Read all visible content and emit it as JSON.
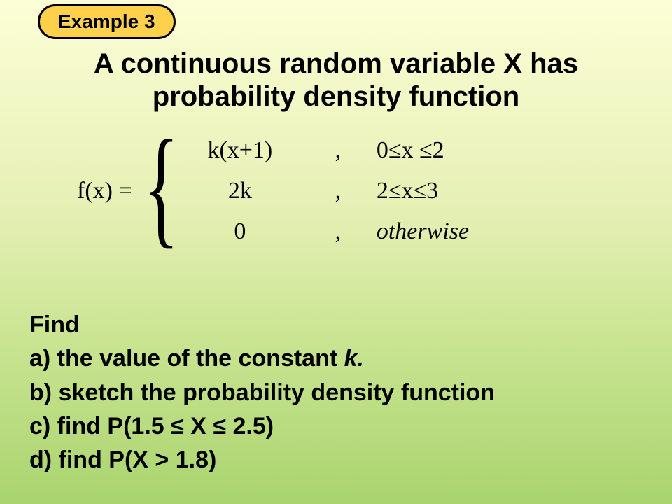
{
  "badge": {
    "label": "Example 3"
  },
  "title": {
    "line1": "A continuous random variable X has",
    "line2": "probability density function"
  },
  "equation": {
    "lhs": "f(x) =",
    "rows": [
      {
        "expr": "k(x+1)",
        "comma": ",",
        "cond": "0≤x ≤2"
      },
      {
        "expr": "2k",
        "comma": ",",
        "cond": "2≤x≤3"
      },
      {
        "expr": "0",
        "comma": ",",
        "cond": "otherwise"
      }
    ]
  },
  "questions": {
    "heading": "Find",
    "a_pre": "a) the value of the constant ",
    "a_k": "k.",
    "b": "b) sketch the probability density function",
    "c": "c) find P(1.5 ≤ X ≤ 2.5)",
    "d": "d) find P(X > 1.8)"
  },
  "colors": {
    "badge_bg": "#ffd04a",
    "badge_border": "#000000",
    "text": "#000000",
    "bg_top": "#fdfed6",
    "bg_bottom": "#a9d46e"
  }
}
